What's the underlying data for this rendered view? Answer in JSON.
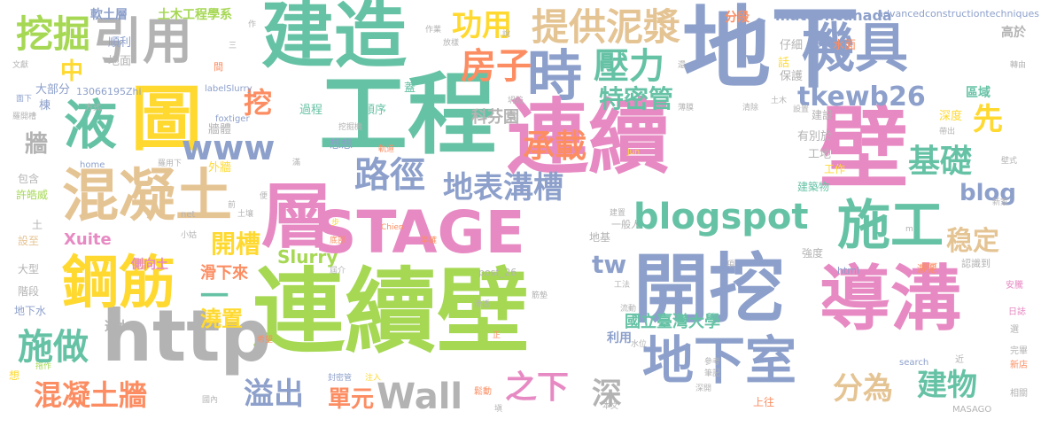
{
  "palette": {
    "green": "#66c2a5",
    "orange": "#fc8d62",
    "blue": "#8da0cb",
    "pink": "#e78ac3",
    "lime": "#a6d854",
    "yellow": "#ffd92f",
    "tan": "#e5c494",
    "gray": "#b3b3b3"
  },
  "words": [
    {
      "text": "連續壁",
      "color": "lime"
    },
    {
      "text": "連續",
      "color": "pink"
    },
    {
      "text": "壁",
      "color": "pink"
    },
    {
      "text": "工程",
      "color": "green"
    },
    {
      "text": "地下",
      "color": "blue"
    },
    {
      "text": "建造",
      "color": "green"
    },
    {
      "text": "開挖",
      "color": "blue"
    },
    {
      "text": "導溝",
      "color": "pink"
    },
    {
      "text": "STAGE",
      "color": "pink"
    },
    {
      "text": "層",
      "color": "pink"
    },
    {
      "text": "http",
      "color": "gray"
    },
    {
      "text": "鋼筋",
      "color": "yellow"
    },
    {
      "text": "混凝土",
      "color": "tan"
    },
    {
      "text": "圖",
      "color": "yellow"
    },
    {
      "text": "液",
      "color": "green"
    },
    {
      "text": "引用",
      "color": "gray"
    },
    {
      "text": "時",
      "color": "blue"
    },
    {
      "text": "機具",
      "color": "blue"
    },
    {
      "text": "地下室",
      "color": "blue"
    },
    {
      "text": "施工",
      "color": "green"
    },
    {
      "text": "blogspot",
      "color": "green"
    },
    {
      "text": "路徑",
      "color": "blue"
    },
    {
      "text": "提供泥漿",
      "color": "tan"
    },
    {
      "text": "挖掘",
      "color": "lime"
    },
    {
      "text": "功用",
      "color": "yellow"
    },
    {
      "text": "房子",
      "color": "orange"
    },
    {
      "text": "壓力",
      "color": "green"
    },
    {
      "text": "特密管",
      "color": "green"
    },
    {
      "text": "tkewb26",
      "color": "blue"
    },
    {
      "text": "www",
      "color": "blue"
    },
    {
      "text": "承載",
      "color": "orange"
    },
    {
      "text": "地表溝槽",
      "color": "blue"
    },
    {
      "text": "基礎",
      "color": "green"
    },
    {
      "text": "先",
      "color": "yellow"
    },
    {
      "text": "稳定",
      "color": "tan"
    },
    {
      "text": "blog",
      "color": "blue"
    },
    {
      "text": "施做",
      "color": "green"
    },
    {
      "text": "開槽",
      "color": "yellow"
    },
    {
      "text": "Wall",
      "color": "gray"
    },
    {
      "text": "混凝土牆",
      "color": "orange"
    },
    {
      "text": "溢出",
      "color": "blue"
    },
    {
      "text": "單元",
      "color": "orange"
    },
    {
      "text": "之下",
      "color": "pink"
    },
    {
      "text": "深",
      "color": "gray"
    },
    {
      "text": "分為",
      "color": "tan"
    },
    {
      "text": "建物",
      "color": "green"
    },
    {
      "text": "tw",
      "color": "blue"
    },
    {
      "text": "中",
      "color": "yellow"
    },
    {
      "text": "挖",
      "color": "orange"
    },
    {
      "text": "牆",
      "color": "gray"
    },
    {
      "text": "一",
      "color": "green"
    },
    {
      "text": "澆置",
      "color": "yellow"
    },
    {
      "text": "Slurry",
      "color": "lime"
    },
    {
      "text": "Xuite",
      "color": "pink"
    },
    {
      "text": "滑下來",
      "color": "orange"
    },
    {
      "text": "國立臺灣大學",
      "color": "green"
    },
    {
      "text": "科芬園",
      "color": "gray"
    },
    {
      "text": "側向土",
      "color": "pink"
    },
    {
      "text": "透水",
      "color": "gray"
    },
    {
      "text": "利用",
      "color": "blue"
    },
    {
      "text": "軟土層",
      "color": "blue"
    },
    {
      "text": "土木工程學系",
      "color": "lime"
    },
    {
      "text": "matconcanada",
      "color": "blue"
    },
    {
      "text": "advancedconstructiontechniques",
      "color": "blue"
    },
    {
      "text": "分段",
      "color": "orange"
    },
    {
      "text": "高於",
      "color": "gray"
    },
    {
      "text": "水面",
      "color": "orange"
    },
    {
      "text": "仔細",
      "color": "gray"
    },
    {
      "text": "話",
      "color": "yellow"
    },
    {
      "text": "保護",
      "color": "gray"
    },
    {
      "text": "區域",
      "color": "green"
    },
    {
      "text": "深度",
      "color": "yellow"
    },
    {
      "text": "建設",
      "color": "gray"
    },
    {
      "text": "有別於",
      "color": "gray"
    },
    {
      "text": "工地",
      "color": "gray"
    },
    {
      "text": "工作",
      "color": "yellow"
    },
    {
      "text": "建築物",
      "color": "green"
    },
    {
      "text": "強度",
      "color": "gray"
    },
    {
      "text": "順利",
      "color": "blue"
    },
    {
      "text": "地面",
      "color": "gray"
    },
    {
      "text": "過程",
      "color": "green"
    },
    {
      "text": "順序",
      "color": "green"
    },
    {
      "text": "牆體",
      "color": "gray"
    },
    {
      "text": "想想",
      "color": "blue"
    },
    {
      "text": "外牆",
      "color": "yellow"
    },
    {
      "text": "蓋",
      "color": "green"
    },
    {
      "text": "大部分",
      "color": "blue"
    },
    {
      "text": "棟",
      "color": "blue"
    },
    {
      "text": "包含",
      "color": "gray"
    },
    {
      "text": "許皓威",
      "color": "lime"
    },
    {
      "text": "土",
      "color": "gray"
    },
    {
      "text": "設至",
      "color": "tan"
    },
    {
      "text": "大型",
      "color": "gray"
    },
    {
      "text": "階段",
      "color": "gray"
    },
    {
      "text": "地下水",
      "color": "blue"
    },
    {
      "text": "13066195Zhi",
      "color": "blue"
    },
    {
      "text": "地基",
      "color": "gray"
    },
    {
      "text": "一般人",
      "color": "gray"
    },
    {
      "text": "post_26",
      "color": "gray"
    },
    {
      "text": "html",
      "color": "blue"
    },
    {
      "text": "認識到",
      "color": "gray"
    },
    {
      "text": "激泥",
      "color": "orange"
    },
    {
      "text": "上往",
      "color": "orange"
    },
    {
      "text": "本文",
      "color": "gray"
    },
    {
      "text": "MASAGO",
      "color": "gray"
    },
    {
      "text": "search",
      "color": "blue"
    },
    {
      "text": "近",
      "color": "gray"
    },
    {
      "text": "完畢",
      "color": "gray"
    },
    {
      "text": "新店",
      "color": "orange"
    },
    {
      "text": "相關",
      "color": "gray"
    },
    {
      "text": "日誌",
      "color": "pink"
    },
    {
      "text": "安騰",
      "color": "pink"
    },
    {
      "text": "選",
      "color": "gray"
    },
    {
      "text": "想",
      "color": "yellow"
    },
    {
      "text": "拖作",
      "color": "lime"
    },
    {
      "text": "國內",
      "color": "gray"
    },
    {
      "text": "封密管",
      "color": "blue"
    },
    {
      "text": "注入",
      "color": "yellow"
    },
    {
      "text": "希望",
      "color": "orange"
    },
    {
      "text": "鬆動",
      "color": "orange"
    },
    {
      "text": "深開",
      "color": "gray"
    },
    {
      "text": "流動",
      "color": "gray"
    },
    {
      "text": "水位",
      "color": "gray"
    },
    {
      "text": "工法",
      "color": "gray"
    },
    {
      "text": "參考",
      "color": "gray"
    },
    {
      "text": "筆記",
      "color": "gray"
    },
    {
      "text": "即可",
      "color": "orange"
    },
    {
      "text": "net",
      "color": "gray"
    },
    {
      "text": "home",
      "color": "blue"
    },
    {
      "text": "Chien",
      "color": "orange"
    },
    {
      "text": "Jun",
      "color": "yellow"
    },
    {
      "text": "foxtiger",
      "color": "blue"
    },
    {
      "text": "labelSlurry",
      "color": "blue"
    },
    {
      "text": "作業",
      "color": "gray"
    },
    {
      "text": "挖掘機",
      "color": "gray"
    },
    {
      "text": "軌道",
      "color": "orange"
    },
    {
      "text": "薄膜",
      "color": "gray"
    },
    {
      "text": "清除",
      "color": "gray"
    },
    {
      "text": "設置",
      "color": "gray"
    },
    {
      "text": "土木",
      "color": "gray"
    },
    {
      "text": "帶出",
      "color": "gray"
    },
    {
      "text": "新家",
      "color": "gray"
    },
    {
      "text": "方式",
      "color": "gray"
    },
    {
      "text": "文獻",
      "color": "gray"
    },
    {
      "text": "面下",
      "color": "blue"
    },
    {
      "text": "羅開槽",
      "color": "gray"
    },
    {
      "text": "準確",
      "color": "orange"
    },
    {
      "text": "底部",
      "color": "orange"
    },
    {
      "text": "放樣",
      "color": "gray"
    },
    {
      "text": "坍陷",
      "color": "gray"
    },
    {
      "text": "建置",
      "color": "gray"
    },
    {
      "text": "還",
      "color": "gray"
    },
    {
      "text": "土壤",
      "color": "gray"
    },
    {
      "text": "小姑",
      "color": "gray"
    },
    {
      "text": "前",
      "color": "gray"
    },
    {
      "text": "便",
      "color": "gray"
    },
    {
      "text": "步",
      "color": "yellow"
    },
    {
      "text": "壁式",
      "color": "gray"
    },
    {
      "text": "滿",
      "color": "gray"
    },
    {
      "text": "羅用下",
      "color": "gray"
    },
    {
      "text": "說",
      "color": "gray"
    },
    {
      "text": "間",
      "color": "orange"
    },
    {
      "text": "作",
      "color": "gray"
    },
    {
      "text": "正",
      "color": "orange"
    },
    {
      "text": "渗透",
      "color": "gray"
    },
    {
      "text": "塡",
      "color": "gray"
    },
    {
      "text": "m",
      "color": "gray"
    },
    {
      "text": "筋墊",
      "color": "gray"
    },
    {
      "text": "轉由",
      "color": "gray"
    },
    {
      "text": "三",
      "color": "gray"
    },
    {
      "text": "屆介",
      "color": "gray"
    },
    {
      "text": "項",
      "color": "gray"
    }
  ]
}
